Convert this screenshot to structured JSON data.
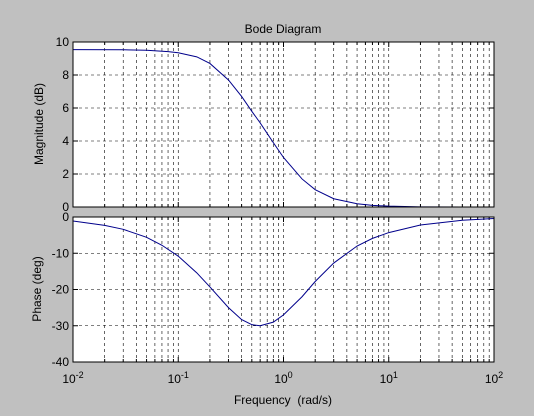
{
  "chart_data": [
    {
      "type": "line",
      "title": "Bode Diagram",
      "ylabel": "Magnitude (dB)",
      "xlabel": "",
      "xscale": "log",
      "xlim": [
        0.01,
        100
      ],
      "ylim": [
        0,
        10
      ],
      "yticks": [
        0,
        2,
        4,
        6,
        8,
        10
      ],
      "grid": true,
      "series_color": "#00008b",
      "x": [
        0.01,
        0.03,
        0.05,
        0.08,
        0.1,
        0.15,
        0.2,
        0.3,
        0.4,
        0.5,
        0.6,
        0.8,
        1.0,
        1.5,
        2.0,
        3.0,
        5.0,
        7.0,
        10.0,
        20.0,
        50.0,
        100.0
      ],
      "series": [
        {
          "values": [
            9.54,
            9.53,
            9.5,
            9.42,
            9.35,
            9.1,
            8.7,
            7.7,
            6.7,
            5.8,
            5.1,
            3.9,
            3.0,
            1.7,
            1.05,
            0.5,
            0.2,
            0.1,
            0.05,
            0.01,
            0.0,
            0.0
          ]
        }
      ]
    },
    {
      "type": "line",
      "title": "",
      "ylabel": "Phase (deg)",
      "xlabel": "Frequency  (rad/s)",
      "xscale": "log",
      "xlim": [
        0.01,
        100
      ],
      "ylim": [
        -40,
        0
      ],
      "yticks": [
        -40,
        -30,
        -20,
        -10,
        0
      ],
      "xticks": [
        0.01,
        0.1,
        1,
        10,
        100
      ],
      "xtick_labels": [
        {
          "base": "10",
          "exp": "-2"
        },
        {
          "base": "10",
          "exp": "-1"
        },
        {
          "base": "10",
          "exp": "0"
        },
        {
          "base": "10",
          "exp": "1"
        },
        {
          "base": "10",
          "exp": "2"
        }
      ],
      "grid": true,
      "series_color": "#00008b",
      "x": [
        0.01,
        0.02,
        0.03,
        0.05,
        0.07,
        0.1,
        0.15,
        0.2,
        0.3,
        0.4,
        0.5,
        0.6,
        0.8,
        1.0,
        1.5,
        2.0,
        3.0,
        5.0,
        7.0,
        10.0,
        20.0,
        50.0,
        100.0
      ],
      "series": [
        {
          "values": [
            -1.1,
            -2.3,
            -3.4,
            -5.6,
            -7.8,
            -10.8,
            -15.4,
            -19.3,
            -25.0,
            -28.3,
            -29.7,
            -30.0,
            -29.0,
            -27.0,
            -22.0,
            -17.8,
            -12.7,
            -8.0,
            -5.9,
            -4.3,
            -2.2,
            -0.9,
            -0.4
          ]
        }
      ]
    }
  ]
}
